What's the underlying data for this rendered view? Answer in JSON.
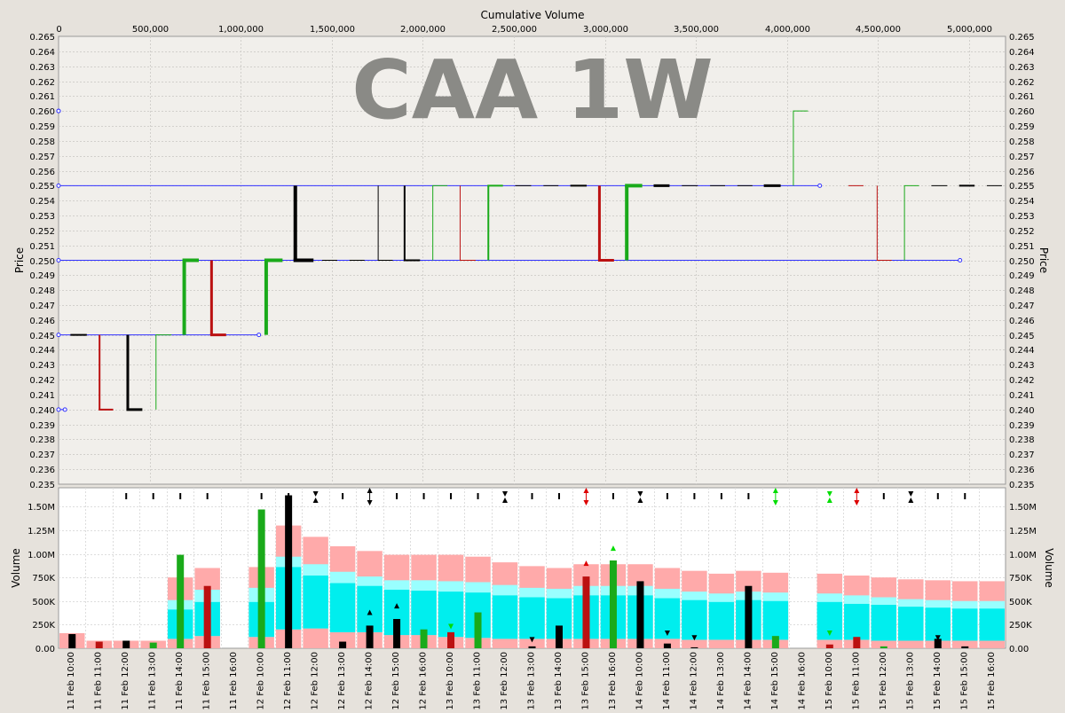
{
  "watermark": "CAA 1W",
  "colors": {
    "up": "#1aaa1a",
    "down": "#bb1111",
    "neutral": "#000000",
    "level": "#3333ff",
    "band_outer": "#ffaaaa",
    "band_mid": "#99ffff",
    "band_inner": "#00eeee",
    "arrow_up": "#00dd00",
    "arrow_down": "#dd0000"
  },
  "chart_data": [
    {
      "type": "line",
      "panel": "price",
      "xlabel": "Cumulative Volume",
      "ylabel": "Price",
      "xlim": [
        0,
        5200000
      ],
      "ylim": [
        0.235,
        0.265
      ],
      "x_ticks": [
        0,
        500000,
        1000000,
        1500000,
        2000000,
        2500000,
        3000000,
        3500000,
        4000000,
        4500000,
        5000000
      ],
      "x_tick_labels": [
        "0",
        "500,000",
        "1,000,000",
        "1,500,000",
        "2,000,000",
        "2,500,000",
        "3,000,000",
        "3,500,000",
        "4,000,000",
        "4,500,000",
        "5,000,000"
      ],
      "y_tick_labels": [
        "0.265",
        "0.264",
        "0.263",
        "0.262",
        "0.261",
        "0.260",
        "0.259",
        "0.258",
        "0.257",
        "0.256",
        "0.255",
        "0.254",
        "0.253",
        "0.252",
        "0.251",
        "0.250",
        "0.249",
        "0.248",
        "0.247",
        "0.246",
        "0.245",
        "0.244",
        "0.243",
        "0.242",
        "0.241",
        "0.240",
        "0.239",
        "0.238",
        "0.237",
        "0.236",
        "0.235"
      ],
      "levels": [
        {
          "price": 0.26,
          "x_end": 0
        },
        {
          "price": 0.255,
          "x_end": 4180000
        },
        {
          "price": 0.25,
          "x_end": 4950000
        },
        {
          "price": 0.245,
          "x_end": 1100000
        },
        {
          "price": 0.24,
          "x_end": 35000
        }
      ],
      "bars": [
        {
          "x0": 70000,
          "x1": 155000,
          "open": 0.245,
          "close": 0.245,
          "dir": "neutral",
          "w": 2
        },
        {
          "x0": 225000,
          "x1": 300000,
          "open": 0.245,
          "close": 0.24,
          "dir": "down",
          "w": 2
        },
        {
          "x0": 380000,
          "x1": 460000,
          "open": 0.245,
          "close": 0.24,
          "dir": "neutral",
          "w": 3
        },
        {
          "x0": 535000,
          "x1": 620000,
          "open": 0.24,
          "close": 0.245,
          "dir": "up",
          "w": 1
        },
        {
          "x0": 690000,
          "x1": 770000,
          "open": 0.245,
          "close": 0.25,
          "dir": "up",
          "w": 4
        },
        {
          "x0": 840000,
          "x1": 920000,
          "open": 0.25,
          "close": 0.245,
          "dir": "down",
          "w": 3
        },
        {
          "x0": 1140000,
          "x1": 1230000,
          "open": 0.245,
          "close": 0.25,
          "dir": "up",
          "w": 4
        },
        {
          "x0": 1300000,
          "x1": 1400000,
          "open": 0.255,
          "close": 0.25,
          "dir": "neutral",
          "w": 4
        },
        {
          "x0": 1450000,
          "x1": 1530000,
          "open": 0.25,
          "close": 0.25,
          "dir": "neutral",
          "w": 1
        },
        {
          "x0": 1600000,
          "x1": 1680000,
          "open": 0.25,
          "close": 0.25,
          "dir": "neutral",
          "w": 1
        },
        {
          "x0": 1755000,
          "x1": 1835000,
          "open": 0.255,
          "close": 0.25,
          "dir": "neutral",
          "w": 1
        },
        {
          "x0": 1900000,
          "x1": 1985000,
          "open": 0.255,
          "close": 0.25,
          "dir": "neutral",
          "w": 2
        },
        {
          "x0": 2055000,
          "x1": 2135000,
          "open": 0.25,
          "close": 0.255,
          "dir": "up",
          "w": 1
        },
        {
          "x0": 2205000,
          "x1": 2290000,
          "open": 0.255,
          "close": 0.25,
          "dir": "down",
          "w": 1
        },
        {
          "x0": 2360000,
          "x1": 2440000,
          "open": 0.25,
          "close": 0.255,
          "dir": "up",
          "w": 2
        },
        {
          "x0": 2510000,
          "x1": 2595000,
          "open": 0.255,
          "close": 0.255,
          "dir": "neutral",
          "w": 1
        },
        {
          "x0": 2665000,
          "x1": 2745000,
          "open": 0.255,
          "close": 0.255,
          "dir": "neutral",
          "w": 1
        },
        {
          "x0": 2815000,
          "x1": 2900000,
          "open": 0.255,
          "close": 0.255,
          "dir": "neutral",
          "w": 2
        },
        {
          "x0": 2970000,
          "x1": 3050000,
          "open": 0.255,
          "close": 0.25,
          "dir": "down",
          "w": 3
        },
        {
          "x0": 3120000,
          "x1": 3205000,
          "open": 0.25,
          "close": 0.255,
          "dir": "up",
          "w": 4
        },
        {
          "x0": 3275000,
          "x1": 3355000,
          "open": 0.255,
          "close": 0.255,
          "dir": "neutral",
          "w": 3
        },
        {
          "x0": 3425000,
          "x1": 3510000,
          "open": 0.255,
          "close": 0.255,
          "dir": "neutral",
          "w": 1
        },
        {
          "x0": 3580000,
          "x1": 3660000,
          "open": 0.255,
          "close": 0.255,
          "dir": "neutral",
          "w": 1
        },
        {
          "x0": 3730000,
          "x1": 3810000,
          "open": 0.255,
          "close": 0.255,
          "dir": "neutral",
          "w": 1
        },
        {
          "x0": 3880000,
          "x1": 3965000,
          "open": 0.255,
          "close": 0.255,
          "dir": "neutral",
          "w": 3
        },
        {
          "x0": 4035000,
          "x1": 4115000,
          "open": 0.255,
          "close": 0.26,
          "dir": "up",
          "w": 1
        },
        {
          "x0": 4340000,
          "x1": 4420000,
          "open": 0.255,
          "close": 0.255,
          "dir": "down",
          "w": 1
        },
        {
          "x0": 4495000,
          "x1": 4575000,
          "open": 0.255,
          "close": 0.25,
          "dir": "down",
          "w": 1
        },
        {
          "x0": 4645000,
          "x1": 4725000,
          "open": 0.25,
          "close": 0.255,
          "dir": "up",
          "w": 1
        },
        {
          "x0": 4795000,
          "x1": 4880000,
          "open": 0.255,
          "close": 0.255,
          "dir": "neutral",
          "w": 1
        },
        {
          "x0": 4950000,
          "x1": 5030000,
          "open": 0.255,
          "close": 0.255,
          "dir": "neutral",
          "w": 2
        },
        {
          "x0": 5100000,
          "x1": 5180000,
          "open": 0.255,
          "close": 0.255,
          "dir": "neutral",
          "w": 1
        }
      ]
    },
    {
      "type": "bar",
      "panel": "volume",
      "ylabel": "Volume",
      "ylim": [
        0,
        1700000
      ],
      "y_ticks": [
        0,
        250000,
        500000,
        750000,
        1000000,
        1250000,
        1500000
      ],
      "y_tick_labels": [
        "0.00",
        "250K",
        "500K",
        "750K",
        "1.00M",
        "1.25M",
        "1.50M"
      ],
      "categories": [
        "11 Feb 10:00",
        "11 Feb 11:00",
        "11 Feb 12:00",
        "11 Feb 13:00",
        "11 Feb 14:00",
        "11 Feb 15:00",
        "11 Feb 16:00",
        "12 Feb 10:00",
        "12 Feb 11:00",
        "12 Feb 12:00",
        "12 Feb 13:00",
        "12 Feb 14:00",
        "12 Feb 15:00",
        "12 Feb 16:00",
        "13 Feb 10:00",
        "13 Feb 11:00",
        "13 Feb 12:00",
        "13 Feb 13:00",
        "13 Feb 14:00",
        "13 Feb 15:00",
        "13 Feb 16:00",
        "14 Feb 10:00",
        "14 Feb 11:00",
        "14 Feb 12:00",
        "14 Feb 13:00",
        "14 Feb 14:00",
        "14 Feb 15:00",
        "14 Feb 16:00",
        "15 Feb 10:00",
        "15 Feb 11:00",
        "15 Feb 12:00",
        "15 Feb 13:00",
        "15 Feb 14:00",
        "15 Feb 15:00",
        "15 Feb 16:00"
      ],
      "bars": [
        {
          "i": 0,
          "v": 150000,
          "dir": "neutral"
        },
        {
          "i": 1,
          "v": 70000,
          "dir": "down"
        },
        {
          "i": 2,
          "v": 80000,
          "dir": "neutral"
        },
        {
          "i": 3,
          "v": 60000,
          "dir": "up"
        },
        {
          "i": 4,
          "v": 990000,
          "dir": "up"
        },
        {
          "i": 5,
          "v": 660000,
          "dir": "down"
        },
        {
          "i": 7,
          "v": 1470000,
          "dir": "up"
        },
        {
          "i": 8,
          "v": 1620000,
          "dir": "neutral"
        },
        {
          "i": 10,
          "v": 70000,
          "dir": "neutral"
        },
        {
          "i": 11,
          "v": 240000,
          "dir": "neutral"
        },
        {
          "i": 12,
          "v": 310000,
          "dir": "neutral"
        },
        {
          "i": 13,
          "v": 200000,
          "dir": "up"
        },
        {
          "i": 14,
          "v": 170000,
          "dir": "down"
        },
        {
          "i": 15,
          "v": 380000,
          "dir": "up"
        },
        {
          "i": 17,
          "v": 20000,
          "dir": "neutral"
        },
        {
          "i": 18,
          "v": 240000,
          "dir": "neutral"
        },
        {
          "i": 19,
          "v": 760000,
          "dir": "down"
        },
        {
          "i": 20,
          "v": 930000,
          "dir": "up"
        },
        {
          "i": 21,
          "v": 710000,
          "dir": "neutral"
        },
        {
          "i": 22,
          "v": 50000,
          "dir": "neutral"
        },
        {
          "i": 23,
          "v": 10000,
          "dir": "neutral"
        },
        {
          "i": 25,
          "v": 660000,
          "dir": "neutral"
        },
        {
          "i": 26,
          "v": 130000,
          "dir": "up"
        },
        {
          "i": 28,
          "v": 40000,
          "dir": "down"
        },
        {
          "i": 29,
          "v": 120000,
          "dir": "down"
        },
        {
          "i": 30,
          "v": 20000,
          "dir": "up"
        },
        {
          "i": 32,
          "v": 100000,
          "dir": "neutral"
        },
        {
          "i": 33,
          "v": 20000,
          "dir": "neutral"
        }
      ],
      "bands": [
        {
          "i": 0,
          "outer": 160000,
          "mid": 160000,
          "inner": 160000,
          "low": 160000
        },
        {
          "i": 1,
          "outer": 80000,
          "mid": 80000,
          "inner": 80000,
          "low": 80000
        },
        {
          "i": 2,
          "outer": 80000,
          "mid": 80000,
          "inner": 80000,
          "low": 80000
        },
        {
          "i": 3,
          "outer": 80000,
          "mid": 80000,
          "inner": 80000,
          "low": 80000
        },
        {
          "i": 4,
          "outer": 750000,
          "mid": 510000,
          "inner": 410000,
          "low": 100000
        },
        {
          "i": 5,
          "outer": 850000,
          "mid": 620000,
          "inner": 490000,
          "low": 130000
        },
        {
          "i": 7,
          "outer": 860000,
          "mid": 640000,
          "inner": 490000,
          "low": 120000
        },
        {
          "i": 8,
          "outer": 1300000,
          "mid": 970000,
          "inner": 860000,
          "low": 200000
        },
        {
          "i": 9,
          "outer": 1180000,
          "mid": 890000,
          "inner": 770000,
          "low": 210000
        },
        {
          "i": 10,
          "outer": 1080000,
          "mid": 810000,
          "inner": 690000,
          "low": 170000
        },
        {
          "i": 11,
          "outer": 1030000,
          "mid": 760000,
          "inner": 660000,
          "low": 170000
        },
        {
          "i": 12,
          "outer": 990000,
          "mid": 720000,
          "inner": 620000,
          "low": 140000
        },
        {
          "i": 13,
          "outer": 990000,
          "mid": 720000,
          "inner": 610000,
          "low": 140000
        },
        {
          "i": 14,
          "outer": 990000,
          "mid": 710000,
          "inner": 600000,
          "low": 120000
        },
        {
          "i": 15,
          "outer": 970000,
          "mid": 700000,
          "inner": 590000,
          "low": 110000
        },
        {
          "i": 16,
          "outer": 910000,
          "mid": 670000,
          "inner": 560000,
          "low": 100000
        },
        {
          "i": 17,
          "outer": 870000,
          "mid": 640000,
          "inner": 540000,
          "low": 100000
        },
        {
          "i": 18,
          "outer": 850000,
          "mid": 630000,
          "inner": 530000,
          "low": 100000
        },
        {
          "i": 19,
          "outer": 890000,
          "mid": 660000,
          "inner": 560000,
          "low": 100000
        },
        {
          "i": 20,
          "outer": 890000,
          "mid": 660000,
          "inner": 560000,
          "low": 100000
        },
        {
          "i": 21,
          "outer": 890000,
          "mid": 660000,
          "inner": 560000,
          "low": 100000
        },
        {
          "i": 22,
          "outer": 850000,
          "mid": 630000,
          "inner": 530000,
          "low": 100000
        },
        {
          "i": 23,
          "outer": 820000,
          "mid": 600000,
          "inner": 510000,
          "low": 90000
        },
        {
          "i": 24,
          "outer": 790000,
          "mid": 580000,
          "inner": 490000,
          "low": 90000
        },
        {
          "i": 25,
          "outer": 820000,
          "mid": 600000,
          "inner": 510000,
          "low": 90000
        },
        {
          "i": 26,
          "outer": 800000,
          "mid": 590000,
          "inner": 500000,
          "low": 90000
        },
        {
          "i": 28,
          "outer": 790000,
          "mid": 580000,
          "inner": 490000,
          "low": 90000
        },
        {
          "i": 29,
          "outer": 770000,
          "mid": 560000,
          "inner": 470000,
          "low": 90000
        },
        {
          "i": 30,
          "outer": 750000,
          "mid": 540000,
          "inner": 460000,
          "low": 80000
        },
        {
          "i": 31,
          "outer": 730000,
          "mid": 520000,
          "inner": 440000,
          "low": 80000
        },
        {
          "i": 32,
          "outer": 720000,
          "mid": 510000,
          "inner": 430000,
          "low": 80000
        },
        {
          "i": 33,
          "outer": 710000,
          "mid": 500000,
          "inner": 420000,
          "low": 80000
        },
        {
          "i": 34,
          "outer": 710000,
          "mid": 500000,
          "inner": 420000,
          "low": 80000
        }
      ],
      "markers": [
        {
          "i": 2,
          "type": "dash",
          "color": "neutral"
        },
        {
          "i": 3,
          "type": "dash",
          "color": "neutral"
        },
        {
          "i": 4,
          "type": "dash",
          "color": "neutral"
        },
        {
          "i": 5,
          "type": "dash",
          "color": "neutral"
        },
        {
          "i": 7,
          "type": "dash",
          "color": "neutral"
        },
        {
          "i": 8,
          "type": "dash",
          "color": "neutral"
        },
        {
          "i": 9,
          "type": "hourglass",
          "color": "neutral"
        },
        {
          "i": 10,
          "type": "dash",
          "color": "neutral"
        },
        {
          "i": 11,
          "type": "updown",
          "color": "neutral"
        },
        {
          "i": 12,
          "type": "dash",
          "color": "neutral"
        },
        {
          "i": 13,
          "type": "dash",
          "color": "neutral"
        },
        {
          "i": 14,
          "type": "dash",
          "color": "neutral"
        },
        {
          "i": 15,
          "type": "dash",
          "color": "neutral"
        },
        {
          "i": 16,
          "type": "hourglass",
          "color": "neutral"
        },
        {
          "i": 17,
          "type": "dash",
          "color": "neutral"
        },
        {
          "i": 18,
          "type": "dash",
          "color": "neutral"
        },
        {
          "i": 19,
          "type": "updown",
          "color": "arrow_down"
        },
        {
          "i": 20,
          "type": "dash",
          "color": "neutral"
        },
        {
          "i": 21,
          "type": "hourglass",
          "color": "neutral"
        },
        {
          "i": 22,
          "type": "dash",
          "color": "neutral"
        },
        {
          "i": 23,
          "type": "dash",
          "color": "neutral"
        },
        {
          "i": 24,
          "type": "dash",
          "color": "neutral"
        },
        {
          "i": 25,
          "type": "dash",
          "color": "neutral"
        },
        {
          "i": 26,
          "type": "updown",
          "color": "arrow_up"
        },
        {
          "i": 28,
          "type": "hourglass",
          "color": "arrow_up"
        },
        {
          "i": 29,
          "type": "updown",
          "color": "arrow_down"
        },
        {
          "i": 30,
          "type": "dash",
          "color": "neutral"
        },
        {
          "i": 31,
          "type": "hourglass",
          "color": "neutral"
        },
        {
          "i": 32,
          "type": "dash",
          "color": "neutral"
        },
        {
          "i": 33,
          "type": "dash",
          "color": "neutral"
        }
      ],
      "small_arrows": [
        {
          "i": 11,
          "v": 380000,
          "dir": "up",
          "color": "neutral"
        },
        {
          "i": 12,
          "v": 450000,
          "dir": "up",
          "color": "neutral"
        },
        {
          "i": 14,
          "v": 230000,
          "dir": "down",
          "color": "arrow_up"
        },
        {
          "i": 17,
          "v": 90000,
          "dir": "down",
          "color": "neutral"
        },
        {
          "i": 19,
          "v": 900000,
          "dir": "up",
          "color": "arrow_down"
        },
        {
          "i": 20,
          "v": 1060000,
          "dir": "up",
          "color": "arrow_up"
        },
        {
          "i": 22,
          "v": 160000,
          "dir": "down",
          "color": "neutral"
        },
        {
          "i": 23,
          "v": 110000,
          "dir": "down",
          "color": "neutral"
        },
        {
          "i": 28,
          "v": 160000,
          "dir": "down",
          "color": "arrow_up"
        },
        {
          "i": 32,
          "v": 110000,
          "dir": "down",
          "color": "neutral"
        }
      ]
    }
  ]
}
